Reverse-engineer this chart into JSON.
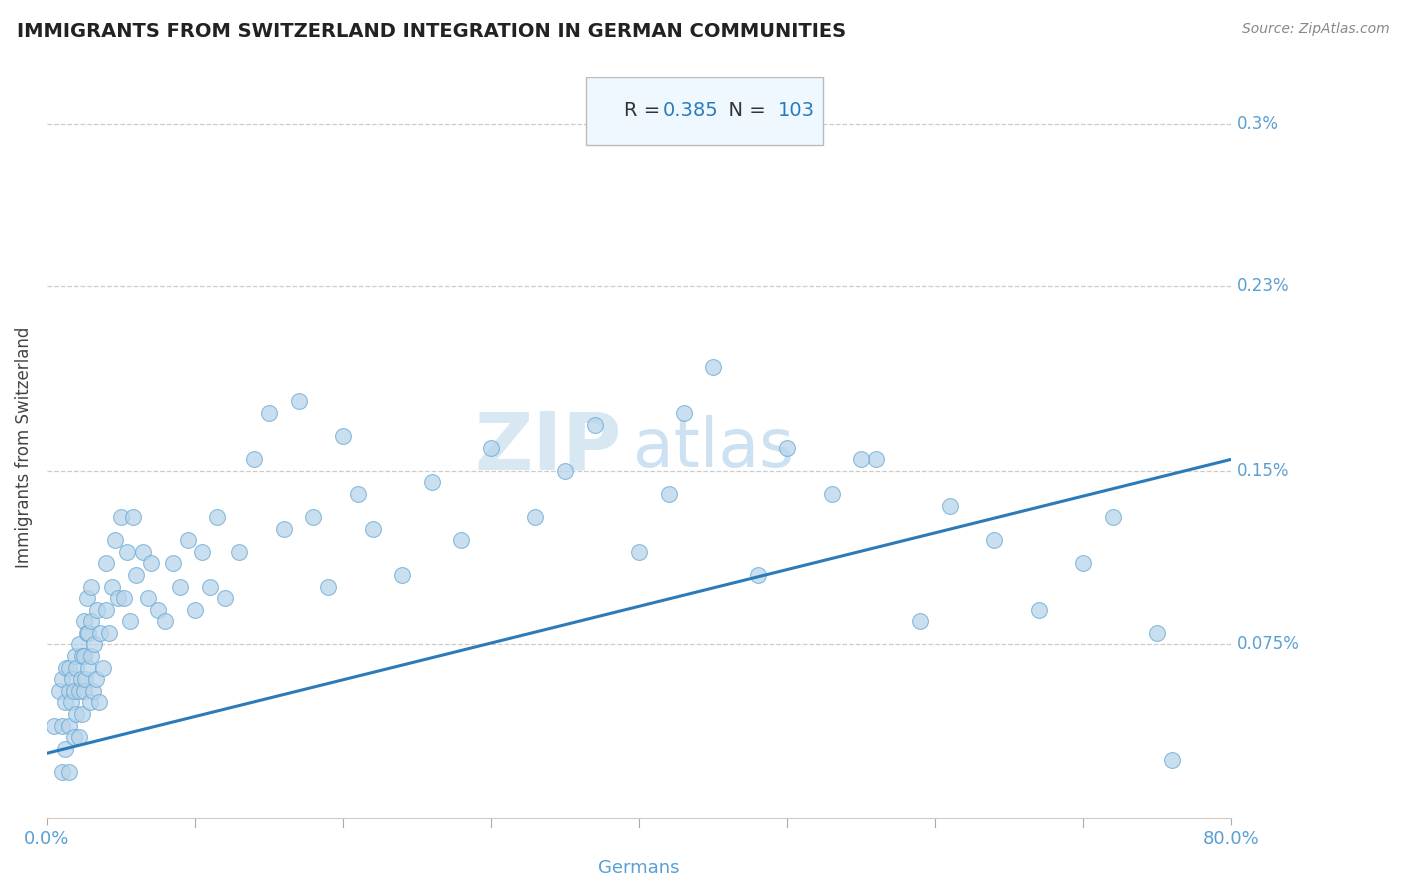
{
  "title": "IMMIGRANTS FROM SWITZERLAND INTEGRATION IN GERMAN COMMUNITIES",
  "source": "Source: ZipAtlas.com",
  "xlabel": "Germans",
  "ylabel": "Immigrants from Switzerland",
  "R": 0.385,
  "N": 103,
  "x_min": 0.0,
  "x_max": 0.8,
  "y_min": 0.0,
  "y_max": 0.0032,
  "y_tick_labels": [
    "0.3%",
    "0.23%",
    "0.15%",
    "0.075%"
  ],
  "y_tick_values": [
    0.003,
    0.0023,
    0.0015,
    0.00075
  ],
  "scatter_color": "#b8d4ea",
  "scatter_edge_color": "#6aaad4",
  "line_color": "#2b7bba",
  "title_color": "#222222",
  "axis_label_color": "#5a9fd4",
  "annotation_color": "#5a9fd4",
  "watermark_zip_color": "#d0e4f0",
  "watermark_atlas_color": "#c4ddf0",
  "box_facecolor": "#f0f8ff",
  "box_edgecolor": "#bbbbbb",
  "R_text_color": "#333333",
  "N_value_color": "#2b7bba",
  "scatter_points_x": [
    0.005,
    0.008,
    0.01,
    0.01,
    0.01,
    0.012,
    0.012,
    0.013,
    0.015,
    0.015,
    0.015,
    0.015,
    0.016,
    0.017,
    0.018,
    0.018,
    0.019,
    0.02,
    0.02,
    0.022,
    0.022,
    0.022,
    0.023,
    0.024,
    0.024,
    0.025,
    0.025,
    0.025,
    0.026,
    0.027,
    0.027,
    0.028,
    0.028,
    0.029,
    0.03,
    0.03,
    0.03,
    0.031,
    0.032,
    0.033,
    0.034,
    0.035,
    0.036,
    0.038,
    0.04,
    0.04,
    0.042,
    0.044,
    0.046,
    0.048,
    0.05,
    0.052,
    0.054,
    0.056,
    0.058,
    0.06,
    0.065,
    0.068,
    0.07,
    0.075,
    0.08,
    0.085,
    0.09,
    0.095,
    0.1,
    0.105,
    0.11,
    0.115,
    0.12,
    0.13,
    0.14,
    0.15,
    0.16,
    0.17,
    0.18,
    0.19,
    0.2,
    0.21,
    0.22,
    0.24,
    0.26,
    0.28,
    0.3,
    0.33,
    0.35,
    0.37,
    0.4,
    0.42,
    0.45,
    0.48,
    0.5,
    0.53,
    0.56,
    0.59,
    0.61,
    0.64,
    0.67,
    0.7,
    0.72,
    0.75,
    0.43,
    0.55,
    0.76
  ],
  "scatter_points_y": [
    0.0004,
    0.00055,
    0.0002,
    0.0004,
    0.0006,
    0.0003,
    0.0005,
    0.00065,
    0.0002,
    0.0004,
    0.00055,
    0.00065,
    0.0005,
    0.0006,
    0.00035,
    0.00055,
    0.0007,
    0.00045,
    0.00065,
    0.00035,
    0.00055,
    0.00075,
    0.0006,
    0.00045,
    0.0007,
    0.00055,
    0.0007,
    0.00085,
    0.0006,
    0.0008,
    0.00095,
    0.00065,
    0.0008,
    0.0005,
    0.0007,
    0.00085,
    0.001,
    0.00055,
    0.00075,
    0.0006,
    0.0009,
    0.0005,
    0.0008,
    0.00065,
    0.0009,
    0.0011,
    0.0008,
    0.001,
    0.0012,
    0.00095,
    0.0013,
    0.00095,
    0.00115,
    0.00085,
    0.0013,
    0.00105,
    0.00115,
    0.00095,
    0.0011,
    0.0009,
    0.00085,
    0.0011,
    0.001,
    0.0012,
    0.0009,
    0.00115,
    0.001,
    0.0013,
    0.00095,
    0.00115,
    0.00155,
    0.00175,
    0.00125,
    0.0018,
    0.0013,
    0.001,
    0.00165,
    0.0014,
    0.00125,
    0.00105,
    0.00145,
    0.0012,
    0.0016,
    0.0013,
    0.0015,
    0.0017,
    0.00115,
    0.0014,
    0.00195,
    0.00105,
    0.0016,
    0.0014,
    0.00155,
    0.00085,
    0.00135,
    0.0012,
    0.0009,
    0.0011,
    0.0013,
    0.0008,
    0.00175,
    0.00155,
    0.00025
  ],
  "trendline_x": [
    0.0,
    0.8
  ],
  "trendline_y": [
    0.00028,
    0.00155
  ]
}
